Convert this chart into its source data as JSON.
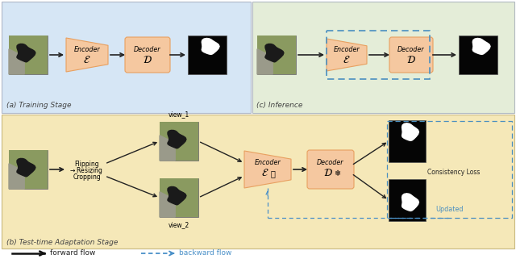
{
  "fig_width": 6.4,
  "fig_height": 3.21,
  "dpi": 100,
  "bg_top_left": "#d6e6f5",
  "bg_top_right": "#e4edd8",
  "bg_bottom": "#f5e8b8",
  "encoder_color": "#f5c8a0",
  "decoder_color": "#f5c8a0",
  "encoder_edge": "#e8a060",
  "arrow_color": "#222222",
  "dashed_box_color": "#4a8fc0",
  "dashed_arrow_color": "#4a90c8",
  "label_color": "#444444",
  "updated_color": "#4a8fc0",
  "consistency_color": "#222222",
  "title_a": "(a) Training Stage",
  "title_b": "(b) Test-time Adaptation Stage",
  "title_c": "(c) Inference",
  "legend_forward": "forward flow",
  "legend_backward": "backward flow"
}
